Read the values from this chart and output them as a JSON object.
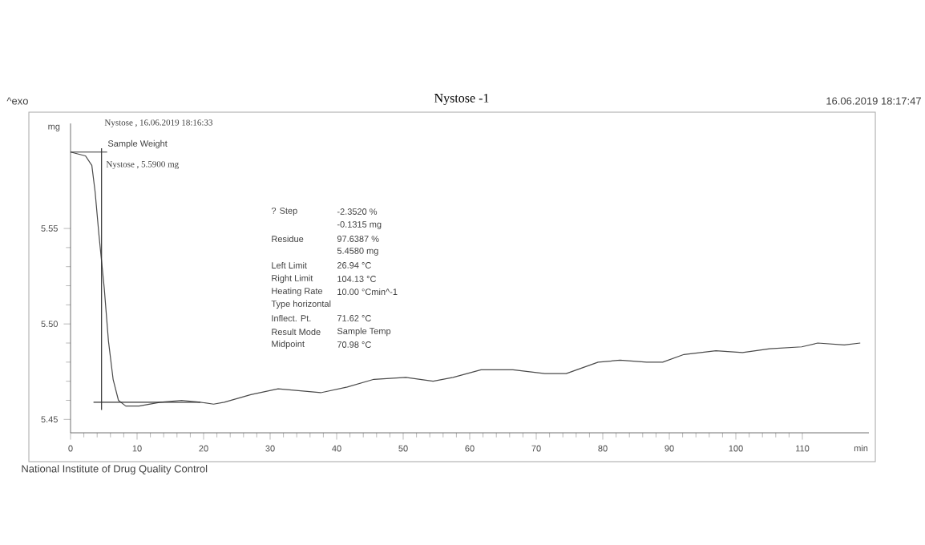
{
  "chart_data": {
    "type": "line",
    "title": "Nystose -1",
    "xlabel": "min",
    "ylabel": "mg",
    "xlim": [
      0,
      120
    ],
    "ylim": [
      5.443,
      5.605
    ],
    "xticks": [
      0,
      10,
      20,
      30,
      40,
      50,
      60,
      70,
      80,
      90,
      100,
      110
    ],
    "yticks": [
      5.45,
      {
        "value": 5.5,
        "label": "5.50"
      },
      5.55
    ],
    "series": [
      {
        "color": "#4a4a4a",
        "x": [
          0,
          2.25,
          3.2,
          3.7,
          4.26,
          5.06,
          5.7,
          6.4,
          7.2,
          8.3,
          10.3,
          13.5,
          16.7,
          19.5,
          21.5,
          23.1,
          27.1,
          31.2,
          34.4,
          37.6,
          41.6,
          45.6,
          50.4,
          54.5,
          57.5,
          61.7,
          66.5,
          71.3,
          74.5,
          79.3,
          82.6,
          86.6,
          89,
          92.2,
          97,
          101,
          105.1,
          109.9,
          112.3,
          116.3,
          118.7
        ],
        "values": [
          5.59,
          5.588,
          5.583,
          5.569,
          5.547,
          5.519,
          5.491,
          5.471,
          5.46,
          5.457,
          5.457,
          5.459,
          5.46,
          5.459,
          5.458,
          5.459,
          5.463,
          5.466,
          5.465,
          5.464,
          5.467,
          5.471,
          5.472,
          5.47,
          5.472,
          5.476,
          5.476,
          5.474,
          5.474,
          5.48,
          5.481,
          5.48,
          5.48,
          5.484,
          5.486,
          5.485,
          5.487,
          5.488,
          5.49,
          5.489,
          5.49
        ]
      },
      {
        "color": "#333333",
        "x": [
          0,
          5.5
        ],
        "values": [
          5.59,
          5.59
        ]
      },
      {
        "color": "#333333",
        "x": [
          4.66,
          4.66
        ],
        "values": [
          5.592,
          5.455
        ]
      },
      {
        "color": "#333333",
        "x": [
          3.45,
          19.5
        ],
        "values": [
          5.459,
          5.459
        ]
      }
    ],
    "annotations": [
      "^exo",
      "16.06.2019 18:17:47",
      "Nystose , 16.06.2019 18:16:33",
      "Sample Weight",
      "Nystose , 5.5900 mg",
      "? Step",
      "-2.3520 %",
      "-0.1315 mg",
      "Residue",
      "97.6387 %",
      "5.4580 mg",
      "Left Limit",
      "26.94 °C",
      "Right Limit",
      "104.13 °C",
      "Heating Rate",
      "10.00 °Cmin^-1",
      "Type horizontal",
      "Inflect. Pt.",
      "71.62 °C",
      "Result Mode",
      "Sample Temp",
      "Midpoint",
      "70.98 °C",
      "National Institute of Drug Quality Control"
    ]
  }
}
